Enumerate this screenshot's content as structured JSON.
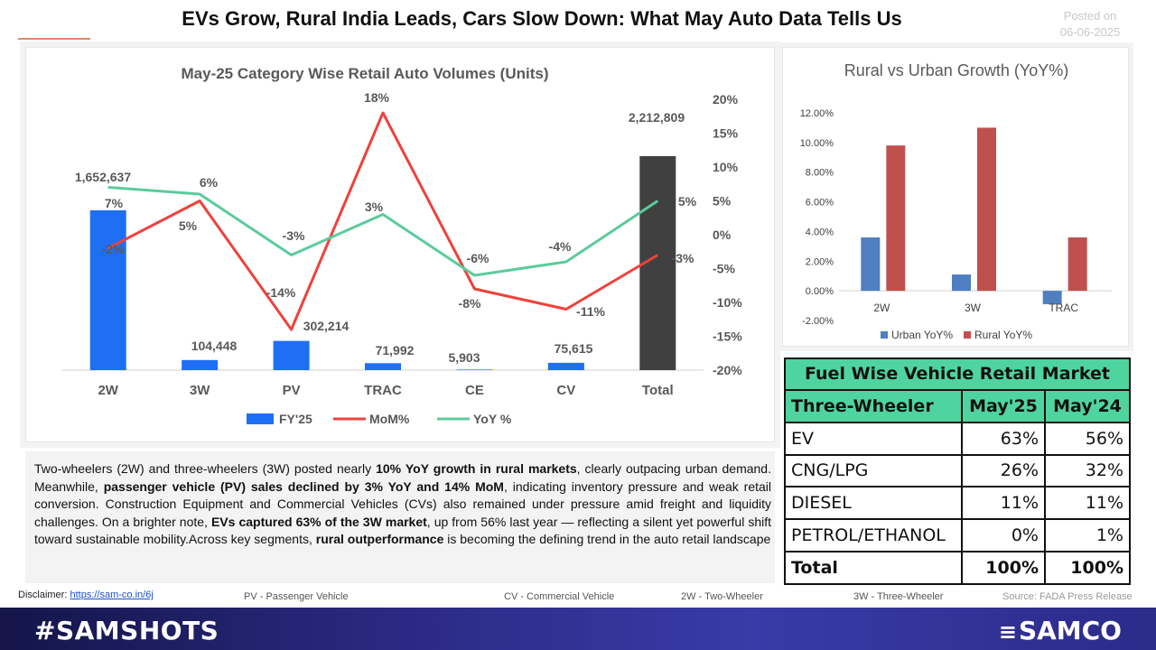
{
  "header": {
    "title": "EVs Grow, Rural India Leads, Cars Slow Down: What May Auto Data Tells Us",
    "posted_label": "Posted on",
    "posted_date": "06-06-2025"
  },
  "colors": {
    "bar": "#1f6ff5",
    "total_bar": "#404040",
    "mom_line": "#f0413c",
    "yoy_line": "#5ccb9c",
    "urban": "#4f7fc0",
    "rural": "#c0504d",
    "table_header": "#4fd49f",
    "bottom_bar": "#2a2a84"
  },
  "chart_data": [
    {
      "type": "bar",
      "title": "May-25 Category Wise Retail Auto Volumes (Units)",
      "categories": [
        "2W",
        "3W",
        "PV",
        "TRAC",
        "CE",
        "CV",
        "Total"
      ],
      "series": [
        {
          "name": "FY'25",
          "type": "bar",
          "values": [
            1652637,
            104448,
            302214,
            71992,
            5903,
            75615,
            2212809
          ],
          "labels": [
            "1,652,637",
            "104,448",
            "302,214",
            "71,992",
            "5,903",
            "75,615",
            "2,212,809"
          ]
        },
        {
          "name": "MoM%",
          "type": "line",
          "axis": "right",
          "values": [
            -2,
            5,
            -14,
            18,
            -8,
            -11,
            -3
          ],
          "labels": [
            "-2%",
            "5%",
            "-14%",
            "18%",
            "-8%",
            "-11%",
            "-3%"
          ]
        },
        {
          "name": "YoY %",
          "type": "line",
          "axis": "right",
          "values": [
            7,
            6,
            -3,
            3,
            -6,
            -4,
            5
          ],
          "labels": [
            "7%",
            "6%",
            "-3%",
            "3%",
            "-6%",
            "-4%",
            "5%"
          ]
        }
      ],
      "ylim": [
        0,
        2800000
      ],
      "y2lim": [
        -20,
        20
      ],
      "y2ticks": [
        "20%",
        "15%",
        "10%",
        "5%",
        "0%",
        "-5%",
        "-10%",
        "-15%",
        "-20%"
      ],
      "legend": "bottom"
    },
    {
      "type": "bar",
      "title": "Rural vs Urban Growth (YoY%)",
      "categories": [
        "2W",
        "3W",
        "TRAC"
      ],
      "series": [
        {
          "name": "Urban YoY%",
          "values": [
            3.6,
            1.1,
            -0.9
          ]
        },
        {
          "name": "Rural YoY%",
          "values": [
            9.8,
            11.0,
            3.6
          ]
        }
      ],
      "ylim": [
        -2,
        12
      ],
      "yticks": [
        "12.00%",
        "10.00%",
        "8.00%",
        "6.00%",
        "4.00%",
        "2.00%",
        "0.00%",
        "-2.00%"
      ],
      "legend": "bottom"
    }
  ],
  "fuel_table": {
    "title": "Fuel Wise Vehicle Retail Market",
    "columns": [
      "Three-Wheeler",
      "May'25",
      "May'24"
    ],
    "rows": [
      [
        "EV",
        "63%",
        "56%"
      ],
      [
        "CNG/LPG",
        "26%",
        "32%"
      ],
      [
        "DIESEL",
        "11%",
        "11%"
      ],
      [
        "PETROL/ETHANOL",
        "0%",
        "1%"
      ]
    ],
    "total": [
      "Total",
      "100%",
      "100%"
    ]
  },
  "narrative": [
    {
      "text": "Two-wheelers (2W) and three-wheelers (3W) posted nearly ",
      "bold": false
    },
    {
      "text": "10% YoY growth in rural markets",
      "bold": true
    },
    {
      "text": ", clearly outpacing urban demand. Meanwhile, ",
      "bold": false
    },
    {
      "text": "passenger vehicle (PV) sales declined by 3% YoY and 14% MoM",
      "bold": true
    },
    {
      "text": ", indicating inventory pressure and weak retail conversion. Construction Equipment and Commercial Vehicles (CVs) also remained under pressure amid freight and liquidity challenges. On a brighter note, ",
      "bold": false
    },
    {
      "text": "EVs captured 63% of the 3W market",
      "bold": true
    },
    {
      "text": ", up from 56% last year — reflecting a silent yet powerful shift toward sustainable mobility.Across key segments, ",
      "bold": false
    },
    {
      "text": "rural outperformance",
      "bold": true
    },
    {
      "text": " is becoming the defining trend in the auto retail landscape",
      "bold": false
    }
  ],
  "footer": {
    "disclaimer_label": "Disclaimer:",
    "disclaimer_link": "https://sam-co.in/6j",
    "abbr_pv": "PV - Passenger Vehicle",
    "abbr_cv": "CV - Commercial Vehicle",
    "abbr_2w": "2W - Two-Wheeler",
    "abbr_3w": "3W - Three-Wheeler",
    "source": "Source: FADA Press Release"
  },
  "bottom_bar": {
    "hashtag": "#SAMSHOTS",
    "logo_text": "SAMCO",
    "logo_icon": "samco-s-icon"
  }
}
